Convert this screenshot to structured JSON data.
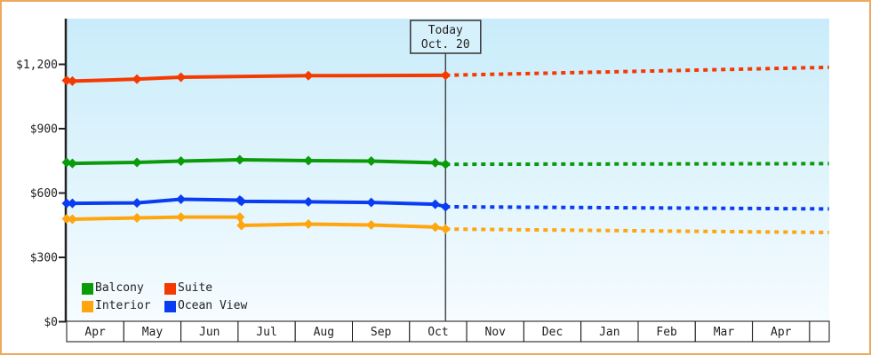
{
  "window": {
    "border_color": "#edaa5e",
    "background": "#ffffff"
  },
  "chart_data": {
    "type": "line",
    "title": "",
    "xlabel": "",
    "ylabel": "",
    "y_axis": {
      "tick_values": [
        0,
        300,
        600,
        900,
        1200
      ],
      "tick_labels": [
        "$0",
        "$300",
        "$600",
        "$900",
        "$1,200"
      ],
      "range": [
        0,
        1410
      ]
    },
    "x_axis": {
      "months": [
        "Apr",
        "May",
        "Jun",
        "Jul",
        "Aug",
        "Sep",
        "Oct",
        "Nov",
        "Dec",
        "Jan",
        "Feb",
        "Mar",
        "Apr"
      ],
      "has_trailing_partial_cell": true
    },
    "today_marker": {
      "line1": "Today",
      "line2": "Oct. 20",
      "x_months": 6.63
    },
    "forecast_style": "dashed",
    "series": [
      {
        "name": "Suite",
        "color": "#f43a00",
        "history_x": [
          0,
          0.1,
          1.23,
          2.0,
          4.23,
          6.63
        ],
        "history_values": [
          1125,
          1122,
          1131,
          1140,
          1147,
          1149
        ],
        "forecast_x": [
          6.63,
          13.34
        ],
        "forecast_values": [
          1149,
          1186
        ]
      },
      {
        "name": "Balcony",
        "color": "#0a9b0a",
        "history_x": [
          0,
          0.1,
          1.23,
          2.0,
          3.03,
          4.23,
          5.33,
          6.45,
          6.63
        ],
        "history_values": [
          743,
          738,
          743,
          749,
          755,
          751,
          749,
          741,
          734
        ],
        "forecast_x": [
          6.63,
          13.34
        ],
        "forecast_values": [
          734,
          737
        ]
      },
      {
        "name": "Ocean View",
        "color": "#0a3df2",
        "history_x": [
          0,
          0.1,
          1.23,
          2.0,
          3.03,
          3.06,
          4.23,
          5.33,
          6.45,
          6.63
        ],
        "history_values": [
          552,
          552,
          554,
          571,
          567,
          561,
          559,
          556,
          548,
          536
        ],
        "forecast_x": [
          6.63,
          13.34
        ],
        "forecast_values": [
          536,
          526
        ]
      },
      {
        "name": "Interior",
        "color": "#ffa60e",
        "history_x": [
          0,
          0.1,
          1.23,
          2.0,
          3.03,
          3.06,
          4.23,
          5.33,
          6.45,
          6.63
        ],
        "history_values": [
          480,
          478,
          484,
          488,
          488,
          449,
          455,
          451,
          441,
          432
        ],
        "forecast_x": [
          6.63,
          13.34
        ],
        "forecast_values": [
          432,
          416
        ]
      }
    ],
    "legend": [
      {
        "label": "Balcony",
        "color": "#0a9b0a"
      },
      {
        "label": "Suite",
        "color": "#f43a00"
      },
      {
        "label": "Interior",
        "color": "#ffa60e"
      },
      {
        "label": "Ocean View",
        "color": "#0a3df2"
      }
    ],
    "colors": {
      "plot_gradient_top": "#c9ecfa",
      "plot_gradient_bottom": "#f6fcff",
      "axis": "#222222",
      "today_line": "#444a50",
      "today_box_fill": "#d7f1fc",
      "month_cell_fill": "#ffffff",
      "month_cell_border": "#111111"
    }
  }
}
